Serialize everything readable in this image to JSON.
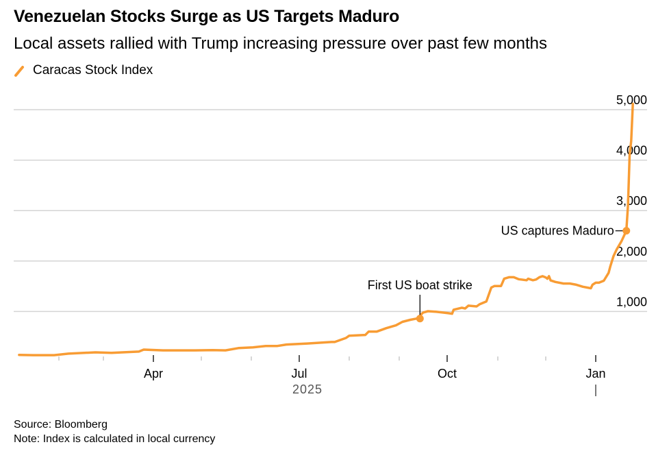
{
  "header": {
    "title": "Venezuelan Stocks Surge as US Targets Maduro",
    "subtitle": "Local assets rallied with Trump increasing pressure over past few months"
  },
  "legend": {
    "icon": "line-swatch-icon",
    "label": "Caracas Stock Index",
    "color": "#f89c34"
  },
  "footer": {
    "source": "Source: Bloomberg",
    "note": "Note: Index is calculated in local currency"
  },
  "chart_data": {
    "type": "line",
    "title": "Venezuelan Stocks Surge as US Targets Maduro",
    "subtitle": "Local assets rallied with Trump increasing pressure over past few months",
    "xlabel": "",
    "ylabel": "",
    "x_unit": "days since 2025-01-01",
    "ylim": [
      0,
      5000
    ],
    "xlim": [
      0,
      368
    ],
    "grid": true,
    "legend_position": "top-left",
    "yticks": [
      1000,
      2000,
      3000,
      4000,
      5000
    ],
    "ytick_labels": [
      "1,000",
      "2,000",
      "3,000",
      "4,000",
      "5,000"
    ],
    "xticks_major": [
      {
        "day": 90,
        "label": "Apr"
      },
      {
        "day": 181,
        "label": "Jul"
      },
      {
        "day": 273,
        "label": "Oct"
      },
      {
        "day": 365,
        "label": "Jan"
      }
    ],
    "xticks_minor": [
      31,
      59,
      120,
      151,
      212,
      243,
      304,
      334
    ],
    "year_label": {
      "day": 181,
      "label": "2025"
    },
    "series": [
      {
        "name": "Caracas Stock Index",
        "color": "#f89c34",
        "points": [
          [
            6,
            140
          ],
          [
            15,
            135
          ],
          [
            28,
            135
          ],
          [
            37,
            165
          ],
          [
            54,
            190
          ],
          [
            64,
            180
          ],
          [
            81,
            205
          ],
          [
            84,
            245
          ],
          [
            96,
            230
          ],
          [
            105,
            230
          ],
          [
            116,
            230
          ],
          [
            127,
            235
          ],
          [
            135,
            230
          ],
          [
            143,
            275
          ],
          [
            152,
            290
          ],
          [
            160,
            315
          ],
          [
            167,
            315
          ],
          [
            173,
            345
          ],
          [
            186,
            365
          ],
          [
            201,
            395
          ],
          [
            203,
            395
          ],
          [
            210,
            475
          ],
          [
            212,
            520
          ],
          [
            222,
            535
          ],
          [
            224,
            600
          ],
          [
            229,
            600
          ],
          [
            235,
            670
          ],
          [
            241,
            725
          ],
          [
            245,
            795
          ],
          [
            250,
            835
          ],
          [
            254,
            860
          ],
          [
            258,
            980
          ],
          [
            261,
            1005
          ],
          [
            266,
            995
          ],
          [
            273,
            970
          ],
          [
            276,
            955
          ],
          [
            277,
            1035
          ],
          [
            282,
            1075
          ],
          [
            284,
            1060
          ],
          [
            286,
            1115
          ],
          [
            291,
            1100
          ],
          [
            293,
            1145
          ],
          [
            297,
            1200
          ],
          [
            300,
            1475
          ],
          [
            302,
            1505
          ],
          [
            306,
            1505
          ],
          [
            308,
            1650
          ],
          [
            311,
            1680
          ],
          [
            314,
            1680
          ],
          [
            317,
            1640
          ],
          [
            322,
            1620
          ],
          [
            323,
            1650
          ],
          [
            326,
            1620
          ],
          [
            328,
            1635
          ],
          [
            330,
            1680
          ],
          [
            332,
            1700
          ],
          [
            334,
            1675
          ],
          [
            335,
            1650
          ],
          [
            336,
            1700
          ],
          [
            337,
            1615
          ],
          [
            340,
            1585
          ],
          [
            345,
            1555
          ],
          [
            349,
            1555
          ],
          [
            353,
            1530
          ],
          [
            357,
            1490
          ],
          [
            362,
            1460
          ],
          [
            363,
            1530
          ],
          [
            365,
            1570
          ],
          [
            367,
            1570
          ],
          [
            370,
            1610
          ],
          [
            373,
            1765
          ],
          [
            374,
            1890
          ],
          [
            376,
            2095
          ],
          [
            378,
            2230
          ],
          [
            381,
            2395
          ],
          [
            384,
            2600
          ],
          [
            385,
            3100
          ],
          [
            386,
            4100
          ],
          [
            387,
            4380
          ],
          [
            388,
            5115
          ]
        ]
      }
    ],
    "annotations": [
      {
        "label": "First US boat strike",
        "day": 256,
        "value": 860
      },
      {
        "label": "US captures Maduro",
        "day": 384,
        "value": 2600
      }
    ]
  }
}
